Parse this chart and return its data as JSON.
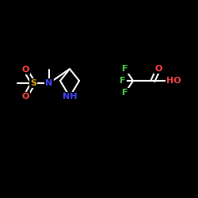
{
  "bg_color": "#000000",
  "bond_color": "#ffffff",
  "atom_colors": {
    "O": "#ff4444",
    "S": "#ddaa00",
    "N": "#4444ff",
    "F": "#44cc44",
    "C": "#ffffff",
    "H": "#ffffff"
  },
  "font_size": 8,
  "bond_width": 1.5
}
